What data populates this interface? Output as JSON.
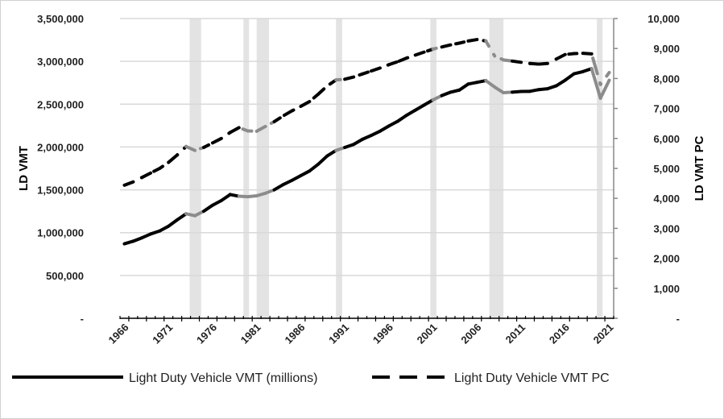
{
  "chart_data": {
    "type": "line",
    "title": "",
    "xlabel": "",
    "ylabel": "LD VMT",
    "ylabel_right": "LD VMT PC",
    "ylim": [
      0,
      3500000
    ],
    "ylim_right": [
      0,
      10000
    ],
    "grid": true,
    "legend_position": "bottom",
    "y_ticks": [
      "-",
      "500,000",
      "1,000,000",
      "1,500,000",
      "2,000,000",
      "2,500,000",
      "3,000,000",
      "3,500,000"
    ],
    "y_ticks_right": [
      "-",
      "1,000",
      "2,000",
      "3,000",
      "4,000",
      "5,000",
      "6,000",
      "7,000",
      "8,000",
      "9,000",
      "10,000"
    ],
    "x_tick_labels": [
      "1966",
      "1971",
      "1976",
      "1981",
      "1986",
      "1991",
      "1996",
      "2001",
      "2006",
      "2011",
      "2016",
      "2021"
    ],
    "x": [
      1966,
      1967,
      1968,
      1969,
      1970,
      1971,
      1972,
      1973,
      1974,
      1975,
      1976,
      1977,
      1978,
      1979,
      1980,
      1981,
      1982,
      1983,
      1984,
      1985,
      1986,
      1987,
      1988,
      1989,
      1990,
      1991,
      1992,
      1993,
      1994,
      1995,
      1996,
      1997,
      1998,
      1999,
      2000,
      2001,
      2002,
      2003,
      2004,
      2005,
      2006,
      2007,
      2008,
      2009,
      2010,
      2011,
      2012,
      2013,
      2014,
      2015,
      2016,
      2017,
      2018,
      2019,
      2020,
      2021
    ],
    "series": [
      {
        "name": "Light Duty Vehicle VMT (millions)",
        "axis": "left",
        "style": "solid",
        "color": "#000000",
        "values": [
          870000,
          900000,
          940000,
          985000,
          1020000,
          1075000,
          1150000,
          1220000,
          1198000,
          1250000,
          1320000,
          1375000,
          1445000,
          1425000,
          1420000,
          1430000,
          1460000,
          1500000,
          1560000,
          1610000,
          1665000,
          1720000,
          1800000,
          1895000,
          1960000,
          1995000,
          2030000,
          2090000,
          2135000,
          2185000,
          2245000,
          2300000,
          2370000,
          2430000,
          2490000,
          2550000,
          2600000,
          2640000,
          2665000,
          2735000,
          2755000,
          2775000,
          2700000,
          2634000,
          2640000,
          2648000,
          2650000,
          2670000,
          2680000,
          2715000,
          2780000,
          2855000,
          2880000,
          2915000,
          2570000,
          2780000
        ]
      },
      {
        "name": "Light Duty Vehicle VMT PC",
        "axis": "right",
        "style": "dashed",
        "color": "#000000",
        "values": [
          4440,
          4550,
          4700,
          4850,
          5000,
          5200,
          5450,
          5730,
          5600,
          5700,
          5850,
          6000,
          6200,
          6360,
          6250,
          6240,
          6400,
          6560,
          6750,
          6920,
          7070,
          7230,
          7480,
          7750,
          7950,
          7975,
          8050,
          8150,
          8250,
          8350,
          8460,
          8560,
          8680,
          8780,
          8880,
          8980,
          9050,
          9120,
          9180,
          9250,
          9300,
          9250,
          8750,
          8620,
          8580,
          8540,
          8500,
          8480,
          8500,
          8650,
          8800,
          8830,
          8840,
          8820,
          7800,
          8200
        ]
      }
    ],
    "recessions": [
      [
        1973.9,
        1975.2
      ],
      [
        1980.0,
        1980.5
      ],
      [
        1981.5,
        1982.9
      ],
      [
        1990.5,
        1991.2
      ],
      [
        2001.2,
        2001.9
      ],
      [
        2007.9,
        2009.5
      ],
      [
        2020.1,
        2020.4
      ]
    ],
    "colors": {
      "recession_band": "#e3e3e3",
      "recession_line": "#8c8c8c",
      "grid": "#d9d9d9",
      "axis": "#888888"
    }
  }
}
